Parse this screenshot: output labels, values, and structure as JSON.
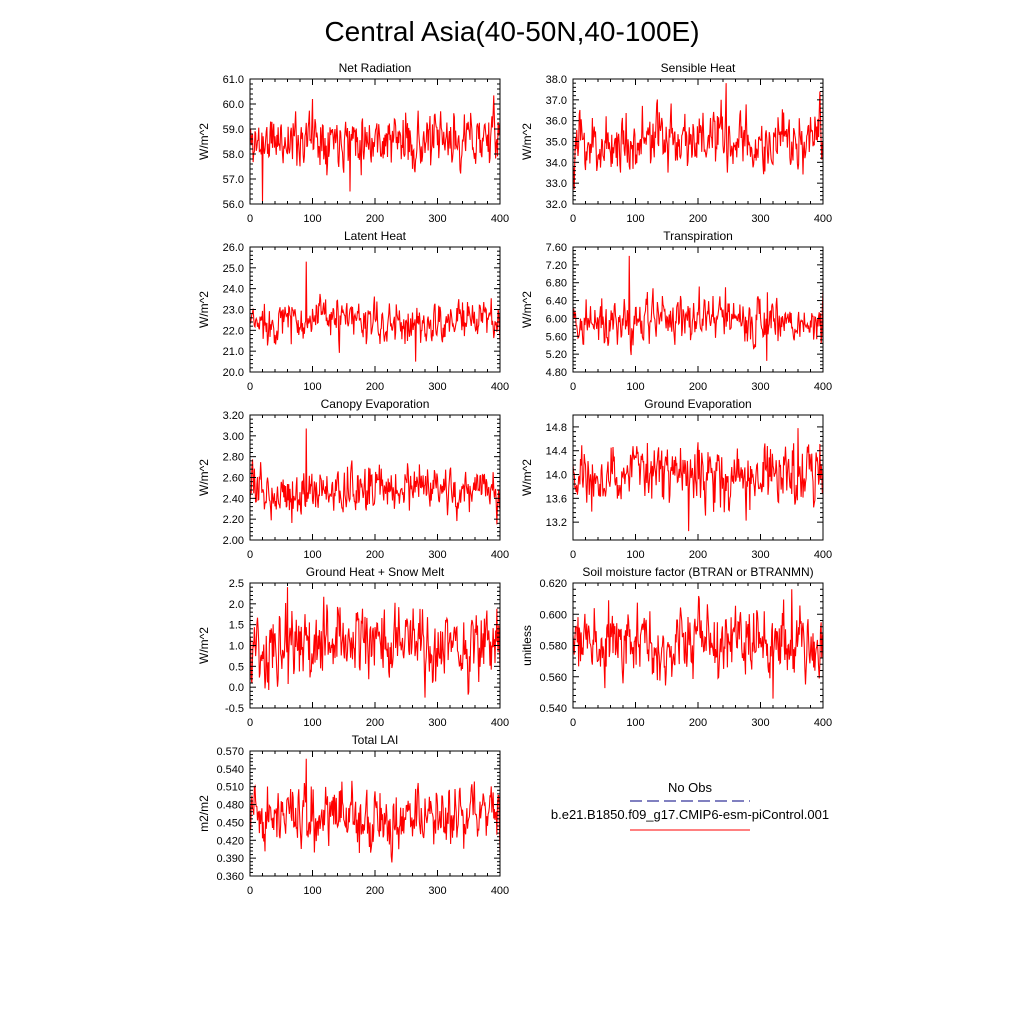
{
  "title": "Central Asia(40-50N,40-100E)",
  "colors": {
    "model_line": "#ff0000",
    "obs_line": "#000080",
    "axis": "#000000"
  },
  "legend": {
    "obs_label": "No Obs",
    "model_label": "b.e21.B1850.f09_g17.CMIP6-esm-piControl.001"
  },
  "chart_data": [
    {
      "type": "line",
      "title": "Net Radiation",
      "ylabel": "W/m^2",
      "xlim": [
        0,
        400
      ],
      "xticks": [
        "0",
        "100",
        "200",
        "300",
        "400"
      ],
      "ylim": [
        56.0,
        61.0
      ],
      "yticks": [
        "56.0",
        "57.0",
        "58.0",
        "59.0",
        "60.0",
        "61.0"
      ],
      "series": [
        {
          "mean": 58.6,
          "std": 0.6,
          "seed": 11,
          "extremes": [
            [
              20,
              56.1
            ],
            [
              100,
              60.2
            ],
            [
              160,
              56.5
            ]
          ]
        }
      ]
    },
    {
      "type": "line",
      "title": "Sensible Heat",
      "ylabel": "W/m^2",
      "xlim": [
        0,
        400
      ],
      "xticks": [
        "0",
        "100",
        "200",
        "300",
        "400"
      ],
      "ylim": [
        32.0,
        38.0
      ],
      "yticks": [
        "32.0",
        "33.0",
        "34.0",
        "35.0",
        "36.0",
        "37.0",
        "38.0"
      ],
      "series": [
        {
          "mean": 35.0,
          "std": 0.8,
          "seed": 23,
          "extremes": [
            [
              2,
              32.7
            ],
            [
              245,
              37.8
            ],
            [
              395,
              37.4
            ]
          ]
        }
      ]
    },
    {
      "type": "line",
      "title": "Latent Heat",
      "ylabel": "W/m^2",
      "xlim": [
        0,
        400
      ],
      "xticks": [
        "0",
        "100",
        "200",
        "300",
        "400"
      ],
      "ylim": [
        20.0,
        26.0
      ],
      "yticks": [
        "20.0",
        "21.0",
        "22.0",
        "23.0",
        "24.0",
        "25.0",
        "26.0"
      ],
      "series": [
        {
          "mean": 22.4,
          "std": 0.55,
          "seed": 37,
          "extremes": [
            [
              90,
              25.3
            ],
            [
              265,
              20.5
            ]
          ]
        }
      ]
    },
    {
      "type": "line",
      "title": "Transpiration",
      "ylabel": "W/m^2",
      "xlim": [
        0,
        400
      ],
      "xticks": [
        "0",
        "100",
        "200",
        "300",
        "400"
      ],
      "ylim": [
        4.8,
        7.6
      ],
      "yticks": [
        "4.80",
        "5.20",
        "5.60",
        "6.00",
        "6.40",
        "6.80",
        "7.20",
        "7.60"
      ],
      "series": [
        {
          "mean": 5.95,
          "std": 0.3,
          "seed": 41,
          "extremes": [
            [
              90,
              7.4
            ],
            [
              310,
              5.05
            ]
          ]
        }
      ]
    },
    {
      "type": "line",
      "title": "Canopy Evaporation",
      "ylabel": "W/m^2",
      "xlim": [
        0,
        400
      ],
      "xticks": [
        "0",
        "100",
        "200",
        "300",
        "400"
      ],
      "ylim": [
        2.0,
        3.2
      ],
      "yticks": [
        "2.00",
        "2.20",
        "2.40",
        "2.60",
        "2.80",
        "3.00",
        "3.20"
      ],
      "series": [
        {
          "mean": 2.48,
          "std": 0.12,
          "seed": 53,
          "extremes": [
            [
              90,
              3.07
            ],
            [
              395,
              2.15
            ]
          ]
        }
      ]
    },
    {
      "type": "line",
      "title": "Ground Evaporation",
      "ylabel": "W/m^2",
      "xlim": [
        0,
        400
      ],
      "xticks": [
        "0",
        "100",
        "200",
        "300",
        "400"
      ],
      "ylim": [
        12.9,
        15.0
      ],
      "yticks": [
        "13.2",
        "13.6",
        "14.0",
        "14.4",
        "14.8"
      ],
      "series": [
        {
          "mean": 14.0,
          "std": 0.28,
          "seed": 67,
          "extremes": [
            [
              185,
              13.05
            ],
            [
              360,
              14.78
            ]
          ]
        }
      ]
    },
    {
      "type": "line",
      "title": "Ground Heat + Snow Melt",
      "ylabel": "W/m^2",
      "xlim": [
        0,
        400
      ],
      "xticks": [
        "0",
        "100",
        "200",
        "300",
        "400"
      ],
      "ylim": [
        -0.5,
        2.5
      ],
      "yticks": [
        "-0.5",
        "0.0",
        "0.5",
        "1.0",
        "1.5",
        "2.0",
        "2.5"
      ],
      "series": [
        {
          "mean": 1.05,
          "std": 0.48,
          "seed": 79,
          "extremes": [
            [
              60,
              2.4
            ],
            [
              280,
              -0.25
            ]
          ]
        }
      ]
    },
    {
      "type": "line",
      "title": "Soil moisture factor (BTRAN or BTRANMN)",
      "ylabel": "unitless",
      "xlim": [
        0,
        400
      ],
      "xticks": [
        "0",
        "100",
        "200",
        "300",
        "400"
      ],
      "ylim": [
        0.54,
        0.62
      ],
      "yticks": [
        "0.540",
        "0.560",
        "0.580",
        "0.600",
        "0.620"
      ],
      "series": [
        {
          "mean": 0.583,
          "std": 0.012,
          "seed": 97,
          "extremes": [
            [
              350,
              0.616
            ],
            [
              320,
              0.546
            ]
          ]
        }
      ]
    },
    {
      "type": "line",
      "title": "Total LAI",
      "ylabel": "m2/m2",
      "xlim": [
        0,
        400
      ],
      "xticks": [
        "0",
        "100",
        "200",
        "300",
        "400"
      ],
      "ylim": [
        0.36,
        0.57
      ],
      "yticks": [
        "0.360",
        "0.390",
        "0.420",
        "0.450",
        "0.480",
        "0.510",
        "0.540",
        "0.570"
      ],
      "series": [
        {
          "mean": 0.46,
          "std": 0.028,
          "seed": 113,
          "extremes": [
            [
              90,
              0.557
            ],
            [
              400,
              0.398
            ]
          ]
        }
      ]
    }
  ]
}
